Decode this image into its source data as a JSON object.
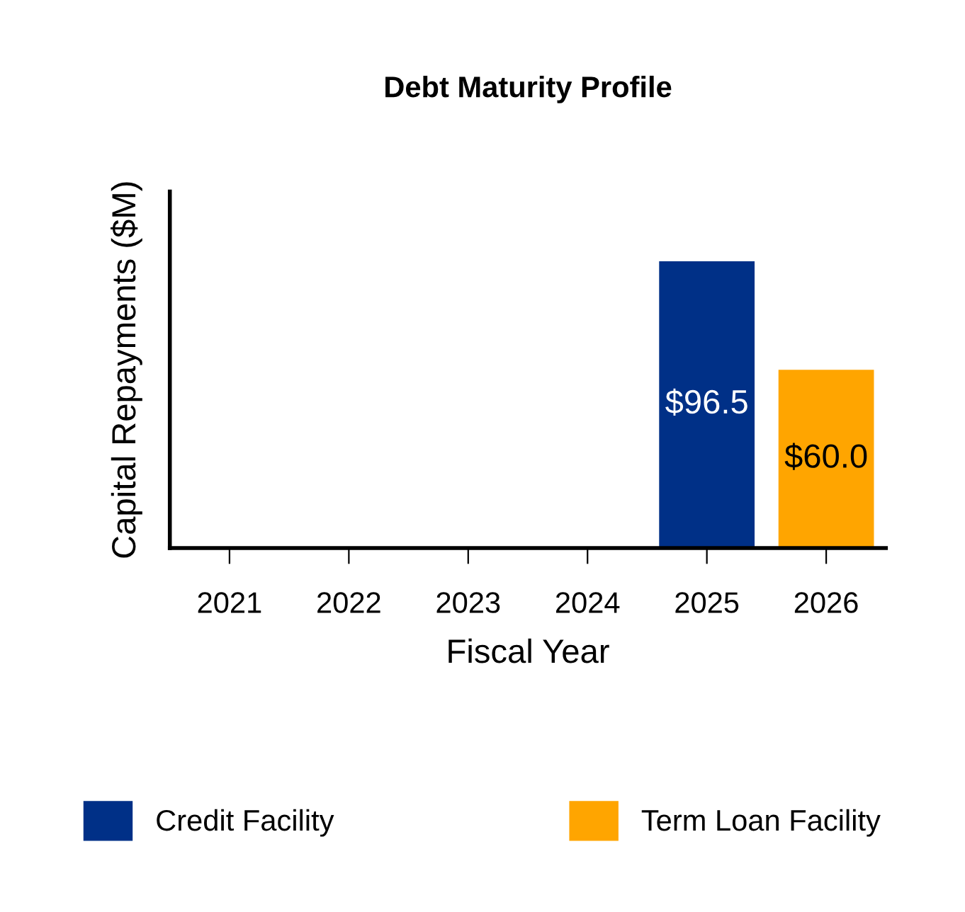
{
  "chart_data": {
    "type": "bar",
    "title": "Debt Maturity Profile",
    "xlabel": "Fiscal Year",
    "ylabel": "Capital Repayments ($M)",
    "categories": [
      "2021",
      "2022",
      "2023",
      "2024",
      "2025",
      "2026"
    ],
    "series": [
      {
        "name": "Credit Facility",
        "color": "#003087",
        "values": [
          null,
          null,
          null,
          null,
          96.5,
          null
        ],
        "value_labels": [
          null,
          null,
          null,
          null,
          "$96.5",
          null
        ]
      },
      {
        "name": "Term Loan Facility",
        "color": "#ffa500",
        "values": [
          null,
          null,
          null,
          null,
          null,
          60.0
        ],
        "value_labels": [
          null,
          null,
          null,
          null,
          null,
          "$60.0"
        ]
      }
    ],
    "ylim": [
      0,
      120
    ],
    "tick_labels": "x",
    "legend": "bottom",
    "grid": false
  }
}
